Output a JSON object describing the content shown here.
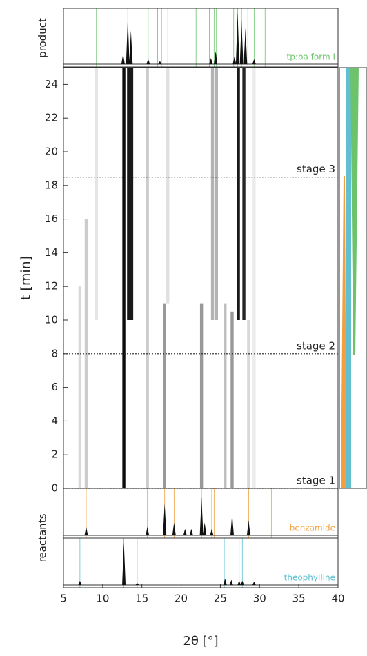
{
  "chart_data": {
    "type": "heatmap",
    "xlabel": "2θ [°]",
    "ylabel": "t [min]",
    "xlim": [
      5,
      40
    ],
    "xticks": [
      5,
      10,
      15,
      20,
      25,
      30,
      35,
      40
    ],
    "ylim": [
      0,
      25
    ],
    "yticks": [
      0,
      2,
      4,
      6,
      8,
      10,
      12,
      14,
      16,
      18,
      20,
      22,
      24
    ],
    "stages": [
      {
        "label": "stage 1",
        "t": 0
      },
      {
        "label": "stage 2",
        "t": 8
      },
      {
        "label": "stage 3",
        "t": 18.5
      }
    ],
    "streaks": [
      {
        "x": 12.7,
        "t0": 0,
        "t1": 25,
        "intensity": 0.95
      },
      {
        "x": 13.3,
        "t0": 10,
        "t1": 25,
        "intensity": 0.9
      },
      {
        "x": 13.7,
        "t0": 10,
        "t1": 25,
        "intensity": 0.9
      },
      {
        "x": 7.1,
        "t0": 0,
        "t1": 12,
        "intensity": 0.15
      },
      {
        "x": 7.9,
        "t0": 0,
        "t1": 16,
        "intensity": 0.2
      },
      {
        "x": 9.2,
        "t0": 10,
        "t1": 25,
        "intensity": 0.1
      },
      {
        "x": 15.7,
        "t0": 0,
        "t1": 25,
        "intensity": 0.2
      },
      {
        "x": 17.9,
        "t0": 0,
        "t1": 11,
        "intensity": 0.4
      },
      {
        "x": 18.3,
        "t0": 11,
        "t1": 25,
        "intensity": 0.12
      },
      {
        "x": 22.6,
        "t0": 0,
        "t1": 11,
        "intensity": 0.4
      },
      {
        "x": 24.0,
        "t0": 10,
        "t1": 25,
        "intensity": 0.3
      },
      {
        "x": 24.5,
        "t0": 10,
        "t1": 25,
        "intensity": 0.3
      },
      {
        "x": 25.6,
        "t0": 0,
        "t1": 11,
        "intensity": 0.25
      },
      {
        "x": 26.5,
        "t0": 0,
        "t1": 10.5,
        "intensity": 0.4
      },
      {
        "x": 27.3,
        "t0": 10,
        "t1": 25,
        "intensity": 0.9
      },
      {
        "x": 28.0,
        "t0": 10,
        "t1": 25,
        "intensity": 0.85
      },
      {
        "x": 28.6,
        "t0": 0,
        "t1": 10,
        "intensity": 0.15
      },
      {
        "x": 29.3,
        "t0": 0,
        "t1": 25,
        "intensity": 0.08
      }
    ],
    "product_label": "product",
    "reactants_label": "reactants",
    "patterns": [
      {
        "name": "tp:ba form I",
        "color": "#6cc36c",
        "panel": "product",
        "refs": [
          9.2,
          12.6,
          13.2,
          15.8,
          17.0,
          17.5,
          18.3,
          21.9,
          23.6,
          24.2,
          24.5,
          26.7,
          27.2,
          27.7,
          28.5,
          29.3,
          30.7
        ],
        "peaks_x": [
          12.6,
          13.2,
          13.6,
          15.8,
          17.3,
          23.8,
          24.4,
          26.8,
          27.2,
          27.7,
          28.2,
          29.3
        ],
        "peaks_h": [
          0.2,
          0.9,
          0.65,
          0.1,
          0.06,
          0.12,
          0.25,
          0.15,
          1.0,
          0.85,
          0.7,
          0.1
        ]
      },
      {
        "name": "benzamide",
        "color": "#f0a040",
        "panel": "reactants",
        "refs": [
          7.9,
          15.7,
          17.9,
          19.1,
          22.6,
          23.9,
          24.2,
          26.5,
          28.6,
          31.5
        ],
        "peaks_x": [
          7.9,
          15.7,
          17.9,
          19.1,
          20.5,
          21.3,
          22.6,
          23.0,
          23.9,
          26.5,
          28.6
        ],
        "peaks_h": [
          0.2,
          0.2,
          0.75,
          0.3,
          0.15,
          0.15,
          0.9,
          0.3,
          0.15,
          0.5,
          0.35
        ]
      },
      {
        "name": "theophylline",
        "color": "#60c0d0",
        "panel": "reactants",
        "refs": [
          7.1,
          12.7,
          14.4,
          25.5,
          27.4,
          27.8,
          29.4
        ],
        "peaks_x": [
          7.1,
          12.7,
          14.4,
          25.6,
          26.4,
          27.4,
          27.8,
          29.3
        ],
        "peaks_h": [
          0.1,
          1.0,
          0.05,
          0.15,
          0.12,
          0.1,
          0.1,
          0.08
        ]
      }
    ],
    "intensity_lim": [
      0,
      1
    ]
  }
}
